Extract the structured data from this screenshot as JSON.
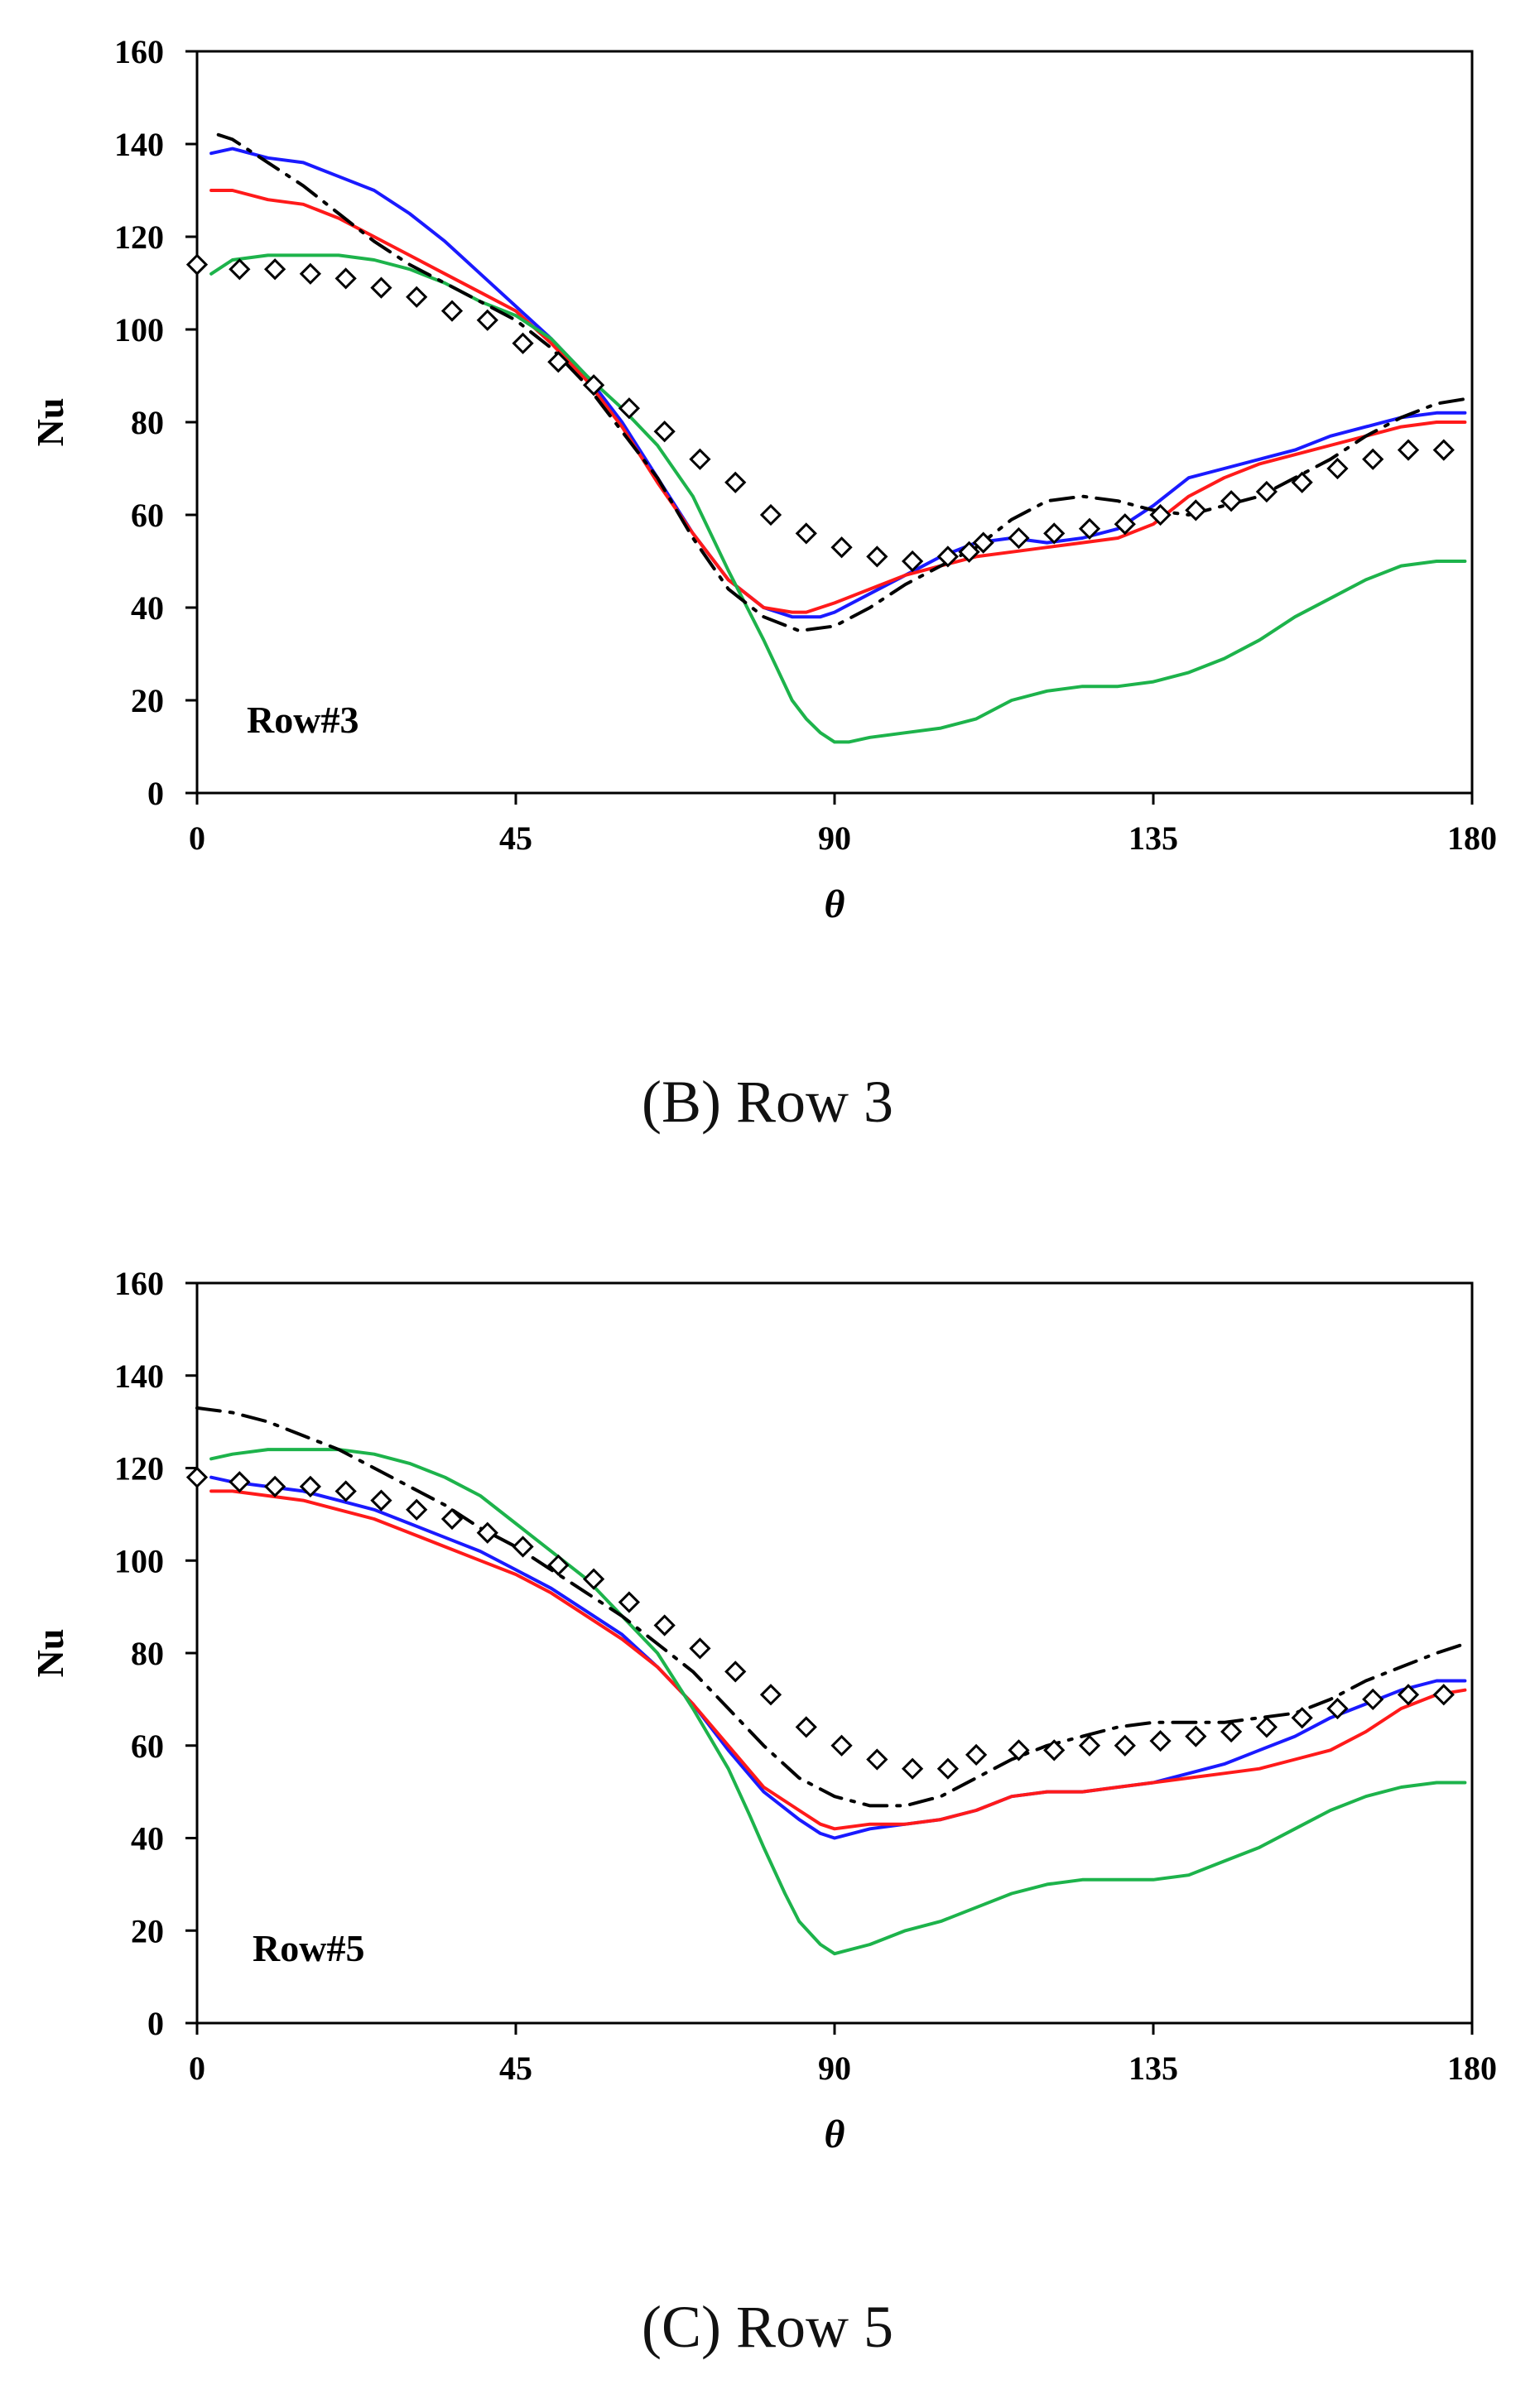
{
  "chart_data": [
    {
      "type": "line",
      "panel": "B",
      "caption": "(B) Row 3",
      "annotation": "Row#3",
      "xlabel": "θ",
      "ylabel": "Nu",
      "xlim": [
        0,
        180
      ],
      "ylim": [
        0,
        160
      ],
      "xticks": [
        "0",
        "45",
        "90",
        "135",
        "180"
      ],
      "yticks": [
        "0",
        "20",
        "40",
        "60",
        "80",
        "100",
        "120",
        "140",
        "160"
      ],
      "series": [
        {
          "name": "blue",
          "color": "#1a1aff",
          "style": "solid",
          "x": [
            2,
            5,
            10,
            15,
            20,
            25,
            30,
            35,
            40,
            45,
            50,
            55,
            60,
            65,
            70,
            75,
            80,
            84,
            86,
            88,
            90,
            95,
            100,
            105,
            110,
            115,
            120,
            125,
            130,
            135,
            140,
            145,
            150,
            155,
            160,
            165,
            170,
            175,
            179
          ],
          "y": [
            138,
            139,
            137,
            136,
            133,
            130,
            125,
            119,
            112,
            105,
            98,
            90,
            80,
            68,
            56,
            46,
            40,
            38,
            38,
            38,
            39,
            43,
            47,
            51,
            54,
            55,
            54,
            55,
            57,
            62,
            68,
            70,
            72,
            74,
            77,
            79,
            81,
            82,
            82
          ]
        },
        {
          "name": "red",
          "color": "#ff1a1a",
          "style": "solid",
          "x": [
            2,
            5,
            10,
            15,
            20,
            25,
            30,
            35,
            40,
            45,
            50,
            55,
            60,
            65,
            70,
            75,
            80,
            84,
            86,
            88,
            90,
            95,
            100,
            105,
            110,
            115,
            120,
            125,
            130,
            135,
            140,
            145,
            150,
            155,
            160,
            165,
            170,
            175,
            179
          ],
          "y": [
            130,
            130,
            128,
            127,
            124,
            120,
            116,
            112,
            108,
            104,
            97,
            89,
            79,
            67,
            56,
            46,
            40,
            39,
            39,
            40,
            41,
            44,
            47,
            49,
            51,
            52,
            53,
            54,
            55,
            58,
            64,
            68,
            71,
            73,
            75,
            77,
            79,
            80,
            80
          ]
        },
        {
          "name": "green",
          "color": "#1db34b",
          "style": "solid",
          "x": [
            2,
            5,
            10,
            15,
            20,
            25,
            30,
            35,
            40,
            45,
            50,
            55,
            60,
            65,
            70,
            75,
            80,
            84,
            86,
            88,
            90,
            92,
            95,
            100,
            105,
            110,
            115,
            120,
            125,
            130,
            135,
            140,
            145,
            150,
            155,
            160,
            165,
            170,
            175,
            179
          ],
          "y": [
            112,
            115,
            116,
            116,
            116,
            115,
            113,
            110,
            106,
            103,
            98,
            90,
            83,
            75,
            64,
            48,
            33,
            20,
            16,
            13,
            11,
            11,
            12,
            13,
            14,
            16,
            20,
            22,
            23,
            23,
            24,
            26,
            29,
            33,
            38,
            42,
            46,
            49,
            50,
            50
          ]
        },
        {
          "name": "dash-dot",
          "color": "#000000",
          "style": "dashdot",
          "x": [
            3,
            5,
            10,
            15,
            20,
            25,
            30,
            35,
            40,
            45,
            50,
            55,
            60,
            65,
            70,
            75,
            80,
            85,
            90,
            95,
            100,
            105,
            110,
            115,
            120,
            125,
            130,
            135,
            140,
            145,
            150,
            155,
            160,
            165,
            170,
            175,
            179
          ],
          "y": [
            142,
            141,
            136,
            131,
            125,
            119,
            114,
            110,
            106,
            102,
            96,
            88,
            78,
            68,
            55,
            44,
            38,
            35,
            36,
            40,
            45,
            49,
            53,
            59,
            63,
            64,
            63,
            61,
            60,
            62,
            64,
            68,
            72,
            77,
            81,
            84,
            85
          ]
        },
        {
          "name": "markers",
          "color": "#000000",
          "style": "diamond",
          "x": [
            0,
            6,
            11,
            16,
            21,
            26,
            31,
            36,
            41,
            46,
            51,
            56,
            61,
            66,
            71,
            76,
            81,
            86,
            91,
            96,
            101,
            106,
            109,
            111,
            116,
            121,
            126,
            131,
            136,
            141,
            146,
            151,
            156,
            161,
            166,
            171,
            176
          ],
          "y": [
            114,
            113,
            113,
            112,
            111,
            109,
            107,
            104,
            102,
            97,
            93,
            88,
            83,
            78,
            72,
            67,
            60,
            56,
            53,
            51,
            50,
            51,
            52,
            54,
            55,
            56,
            57,
            58,
            60,
            61,
            63,
            65,
            67,
            70,
            72,
            74,
            74
          ]
        }
      ]
    },
    {
      "type": "line",
      "panel": "C",
      "caption": "(C) Row 5",
      "annotation": "Row#5",
      "xlabel": "θ",
      "ylabel": "Nu",
      "xlim": [
        0,
        180
      ],
      "ylim": [
        0,
        160
      ],
      "xticks": [
        "0",
        "45",
        "90",
        "135",
        "180"
      ],
      "yticks": [
        "0",
        "20",
        "40",
        "60",
        "80",
        "100",
        "120",
        "140",
        "160"
      ],
      "series": [
        {
          "name": "blue",
          "color": "#1a1aff",
          "style": "solid",
          "x": [
            2,
            5,
            10,
            15,
            20,
            25,
            30,
            35,
            40,
            45,
            50,
            55,
            60,
            65,
            70,
            75,
            80,
            85,
            88,
            90,
            95,
            100,
            105,
            110,
            115,
            120,
            125,
            130,
            135,
            140,
            145,
            150,
            155,
            160,
            165,
            170,
            175,
            179
          ],
          "y": [
            118,
            117,
            116,
            115,
            113,
            111,
            108,
            105,
            102,
            98,
            94,
            89,
            84,
            77,
            69,
            59,
            50,
            44,
            41,
            40,
            42,
            43,
            44,
            46,
            49,
            50,
            50,
            51,
            52,
            54,
            56,
            59,
            62,
            66,
            69,
            72,
            74,
            74
          ]
        },
        {
          "name": "red",
          "color": "#ff1a1a",
          "style": "solid",
          "x": [
            2,
            5,
            10,
            15,
            20,
            25,
            30,
            35,
            40,
            45,
            50,
            55,
            60,
            65,
            70,
            75,
            80,
            85,
            88,
            90,
            95,
            100,
            105,
            110,
            115,
            120,
            125,
            130,
            135,
            140,
            145,
            150,
            155,
            160,
            165,
            170,
            175,
            179
          ],
          "y": [
            115,
            115,
            114,
            113,
            111,
            109,
            106,
            103,
            100,
            97,
            93,
            88,
            83,
            77,
            69,
            60,
            51,
            46,
            43,
            42,
            43,
            43,
            44,
            46,
            49,
            50,
            50,
            51,
            52,
            53,
            54,
            55,
            57,
            59,
            63,
            68,
            71,
            72
          ]
        },
        {
          "name": "green",
          "color": "#1db34b",
          "style": "solid",
          "x": [
            2,
            5,
            10,
            15,
            20,
            25,
            30,
            35,
            40,
            45,
            50,
            55,
            60,
            65,
            70,
            75,
            78,
            80,
            83,
            85,
            88,
            90,
            95,
            100,
            105,
            110,
            115,
            120,
            125,
            130,
            135,
            140,
            145,
            150,
            155,
            160,
            165,
            170,
            175,
            179
          ],
          "y": [
            122,
            123,
            124,
            124,
            124,
            123,
            121,
            118,
            114,
            108,
            102,
            96,
            88,
            80,
            68,
            55,
            45,
            38,
            28,
            22,
            17,
            15,
            17,
            20,
            22,
            25,
            28,
            30,
            31,
            31,
            31,
            32,
            35,
            38,
            42,
            46,
            49,
            51,
            52,
            52
          ]
        },
        {
          "name": "dash-dot",
          "color": "#000000",
          "style": "dashdot",
          "x": [
            0,
            5,
            10,
            15,
            20,
            25,
            30,
            35,
            40,
            45,
            50,
            55,
            60,
            65,
            70,
            75,
            80,
            85,
            90,
            95,
            100,
            105,
            110,
            115,
            120,
            125,
            130,
            135,
            140,
            145,
            150,
            155,
            160,
            165,
            170,
            175,
            179
          ],
          "y": [
            133,
            132,
            130,
            127,
            124,
            120,
            116,
            112,
            107,
            103,
            98,
            93,
            88,
            82,
            76,
            68,
            60,
            53,
            49,
            47,
            47,
            49,
            53,
            57,
            60,
            62,
            64,
            65,
            65,
            65,
            66,
            67,
            70,
            74,
            77,
            80,
            82
          ]
        },
        {
          "name": "markers",
          "color": "#000000",
          "style": "diamond",
          "x": [
            0,
            6,
            11,
            16,
            21,
            26,
            31,
            36,
            41,
            46,
            51,
            56,
            61,
            66,
            71,
            76,
            81,
            86,
            91,
            96,
            101,
            106,
            110,
            116,
            121,
            126,
            131,
            136,
            141,
            146,
            151,
            156,
            161,
            166,
            171,
            176
          ],
          "y": [
            118,
            117,
            116,
            116,
            115,
            113,
            111,
            109,
            106,
            103,
            99,
            96,
            91,
            86,
            81,
            76,
            71,
            64,
            60,
            57,
            55,
            55,
            58,
            59,
            59,
            60,
            60,
            61,
            62,
            63,
            64,
            66,
            68,
            70,
            71,
            71
          ]
        }
      ]
    }
  ]
}
